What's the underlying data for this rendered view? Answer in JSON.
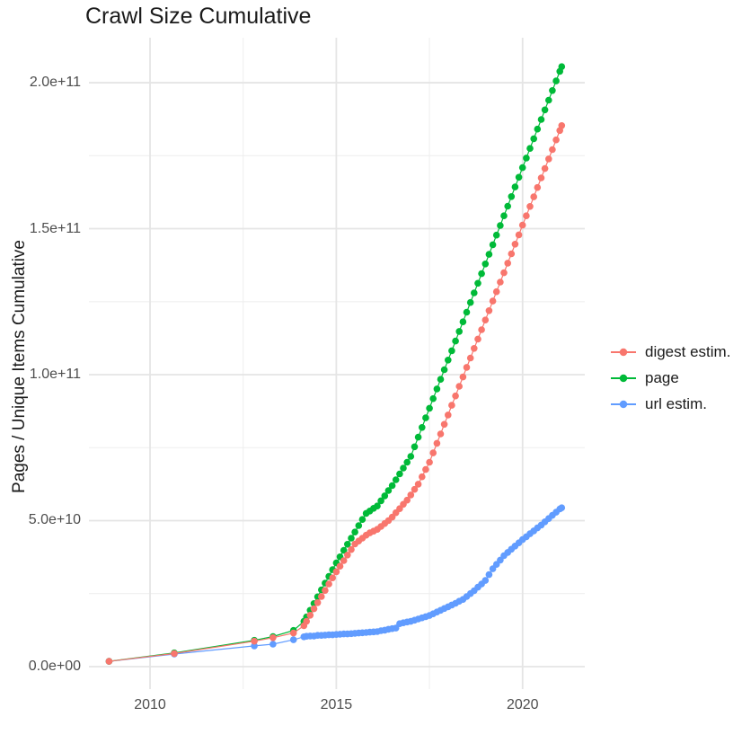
{
  "chart_data": {
    "type": "line",
    "title": "Crawl Size Cumulative",
    "xlabel": "",
    "ylabel": "Pages / Unique Items Cumulative",
    "legend_position": "right",
    "grid": true,
    "value_unit": 1000000000,
    "units_note": "point values are in billions (1e9); y axis shows scientific labels",
    "xlim": [
      2008.36,
      2021.67
    ],
    "ylim_e9": [
      -7.7,
      215.4
    ],
    "x_ticks": [
      {
        "label": "2010",
        "value": 2010
      },
      {
        "label": "2015",
        "value": 2015
      },
      {
        "label": "2020",
        "value": 2020
      }
    ],
    "y_ticks": [
      {
        "label": "0.0e+00",
        "value": 0
      },
      {
        "label": "5.0e+10",
        "value": 50
      },
      {
        "label": "1.0e+11",
        "value": 100
      },
      {
        "label": "1.5e+11",
        "value": 150
      },
      {
        "label": "2.0e+11",
        "value": 200
      }
    ],
    "x_minor": [
      2012.5,
      2017.5
    ],
    "y_minor": [
      25,
      75,
      125,
      175
    ],
    "series": [
      {
        "name": "digest estim.",
        "color": "#F8766D",
        "points": [
          [
            2008.9,
            1.8
          ],
          [
            2010.65,
            4.5
          ],
          [
            2012.8,
            8.7
          ],
          [
            2013.3,
            9.9
          ],
          [
            2013.85,
            11.5
          ],
          [
            2014.13,
            14.0
          ],
          [
            2014.2,
            15.5
          ],
          [
            2014.3,
            17.6
          ],
          [
            2014.4,
            19.8
          ],
          [
            2014.5,
            21.9
          ],
          [
            2014.6,
            24.0
          ],
          [
            2014.7,
            26.1
          ],
          [
            2014.8,
            28.3
          ],
          [
            2014.9,
            30.4
          ],
          [
            2015.0,
            32.5
          ],
          [
            2015.1,
            34.4
          ],
          [
            2015.2,
            36.3
          ],
          [
            2015.3,
            38.2
          ],
          [
            2015.4,
            40.1
          ],
          [
            2015.5,
            42.0
          ],
          [
            2015.6,
            43.0
          ],
          [
            2015.7,
            44.0
          ],
          [
            2015.8,
            45.0
          ],
          [
            2015.9,
            45.8
          ],
          [
            2016.0,
            46.4
          ],
          [
            2016.1,
            47.0
          ],
          [
            2016.2,
            48.0
          ],
          [
            2016.3,
            49.0
          ],
          [
            2016.4,
            50.0
          ],
          [
            2016.5,
            51.2
          ],
          [
            2016.6,
            52.7
          ],
          [
            2016.7,
            54.1
          ],
          [
            2016.8,
            55.6
          ],
          [
            2016.9,
            57.0
          ],
          [
            2017.0,
            58.8
          ],
          [
            2017.1,
            60.7
          ],
          [
            2017.2,
            62.5
          ],
          [
            2017.3,
            65.0
          ],
          [
            2017.4,
            67.5
          ],
          [
            2017.5,
            70.0
          ],
          [
            2017.6,
            73.2
          ],
          [
            2017.7,
            76.5
          ],
          [
            2017.8,
            79.7
          ],
          [
            2017.9,
            83.0
          ],
          [
            2018.0,
            86.2
          ],
          [
            2018.1,
            89.5
          ],
          [
            2018.2,
            92.7
          ],
          [
            2018.3,
            96.0
          ],
          [
            2018.4,
            99.2
          ],
          [
            2018.5,
            102.5
          ],
          [
            2018.6,
            105.7
          ],
          [
            2018.7,
            109.0
          ],
          [
            2018.8,
            112.2
          ],
          [
            2018.9,
            115.4
          ],
          [
            2019.0,
            118.7
          ],
          [
            2019.1,
            121.9
          ],
          [
            2019.2,
            125.2
          ],
          [
            2019.3,
            128.4
          ],
          [
            2019.4,
            131.7
          ],
          [
            2019.5,
            134.9
          ],
          [
            2019.6,
            138.2
          ],
          [
            2019.7,
            141.4
          ],
          [
            2019.8,
            144.7
          ],
          [
            2019.9,
            147.9
          ],
          [
            2020.0,
            151.2
          ],
          [
            2020.1,
            154.4
          ],
          [
            2020.2,
            157.6
          ],
          [
            2020.3,
            160.9
          ],
          [
            2020.4,
            164.1
          ],
          [
            2020.5,
            167.4
          ],
          [
            2020.6,
            170.6
          ],
          [
            2020.7,
            173.9
          ],
          [
            2020.8,
            177.1
          ],
          [
            2020.9,
            180.4
          ],
          [
            2021.0,
            183.6
          ],
          [
            2021.05,
            185.3
          ]
        ]
      },
      {
        "name": "page",
        "color": "#00BA38",
        "points": [
          [
            2008.9,
            1.8
          ],
          [
            2010.65,
            4.7
          ],
          [
            2012.8,
            9.0
          ],
          [
            2013.3,
            10.3
          ],
          [
            2013.85,
            12.4
          ],
          [
            2014.13,
            15.5
          ],
          [
            2014.2,
            17.0
          ],
          [
            2014.3,
            19.3
          ],
          [
            2014.4,
            21.6
          ],
          [
            2014.5,
            23.9
          ],
          [
            2014.6,
            26.3
          ],
          [
            2014.7,
            28.6
          ],
          [
            2014.8,
            30.9
          ],
          [
            2014.9,
            33.2
          ],
          [
            2015.0,
            35.5
          ],
          [
            2015.1,
            37.6
          ],
          [
            2015.2,
            39.8
          ],
          [
            2015.3,
            41.9
          ],
          [
            2015.4,
            44.0
          ],
          [
            2015.5,
            46.1
          ],
          [
            2015.6,
            48.3
          ],
          [
            2015.7,
            50.4
          ],
          [
            2015.8,
            52.5
          ],
          [
            2015.9,
            53.3
          ],
          [
            2016.0,
            54.2
          ],
          [
            2016.1,
            55.0
          ],
          [
            2016.2,
            56.8
          ],
          [
            2016.3,
            58.5
          ],
          [
            2016.4,
            60.3
          ],
          [
            2016.5,
            62.0
          ],
          [
            2016.6,
            64.0
          ],
          [
            2016.7,
            66.0
          ],
          [
            2016.8,
            68.0
          ],
          [
            2016.9,
            70.0
          ],
          [
            2017.0,
            72.0
          ],
          [
            2017.1,
            75.3
          ],
          [
            2017.2,
            78.6
          ],
          [
            2017.3,
            81.9
          ],
          [
            2017.4,
            85.2
          ],
          [
            2017.5,
            88.5
          ],
          [
            2017.6,
            91.8
          ],
          [
            2017.7,
            95.1
          ],
          [
            2017.8,
            98.4
          ],
          [
            2017.9,
            101.7
          ],
          [
            2018.0,
            105.0
          ],
          [
            2018.1,
            108.2
          ],
          [
            2018.2,
            111.5
          ],
          [
            2018.3,
            114.8
          ],
          [
            2018.4,
            118.1
          ],
          [
            2018.5,
            121.4
          ],
          [
            2018.6,
            124.7
          ],
          [
            2018.7,
            128.0
          ],
          [
            2018.8,
            131.3
          ],
          [
            2018.9,
            134.6
          ],
          [
            2019.0,
            137.9
          ],
          [
            2019.1,
            141.2
          ],
          [
            2019.2,
            144.5
          ],
          [
            2019.3,
            147.8
          ],
          [
            2019.4,
            151.1
          ],
          [
            2019.5,
            154.4
          ],
          [
            2019.6,
            157.7
          ],
          [
            2019.7,
            161.0
          ],
          [
            2019.8,
            164.3
          ],
          [
            2019.9,
            167.6
          ],
          [
            2020.0,
            170.9
          ],
          [
            2020.1,
            174.2
          ],
          [
            2020.2,
            177.5
          ],
          [
            2020.3,
            180.8
          ],
          [
            2020.4,
            184.1
          ],
          [
            2020.5,
            187.4
          ],
          [
            2020.6,
            190.7
          ],
          [
            2020.7,
            194.0
          ],
          [
            2020.8,
            197.3
          ],
          [
            2020.9,
            200.6
          ],
          [
            2021.0,
            203.9
          ],
          [
            2021.05,
            205.5
          ]
        ]
      },
      {
        "name": "url estim.",
        "color": "#619CFF",
        "points": [
          [
            2008.9,
            1.8
          ],
          [
            2010.65,
            4.3
          ],
          [
            2012.8,
            7.1
          ],
          [
            2013.3,
            7.7
          ],
          [
            2013.85,
            9.2
          ],
          [
            2014.13,
            10.2
          ],
          [
            2014.2,
            10.4
          ],
          [
            2014.3,
            10.5
          ],
          [
            2014.4,
            10.5
          ],
          [
            2014.5,
            10.7
          ],
          [
            2014.6,
            10.7
          ],
          [
            2014.7,
            10.8
          ],
          [
            2014.8,
            10.9
          ],
          [
            2014.9,
            10.9
          ],
          [
            2015.0,
            11.0
          ],
          [
            2015.1,
            11.1
          ],
          [
            2015.2,
            11.2
          ],
          [
            2015.3,
            11.2
          ],
          [
            2015.4,
            11.3
          ],
          [
            2015.5,
            11.4
          ],
          [
            2015.6,
            11.5
          ],
          [
            2015.7,
            11.6
          ],
          [
            2015.8,
            11.7
          ],
          [
            2015.9,
            11.8
          ],
          [
            2016.0,
            11.9
          ],
          [
            2016.1,
            12.0
          ],
          [
            2016.2,
            12.3
          ],
          [
            2016.3,
            12.5
          ],
          [
            2016.4,
            12.8
          ],
          [
            2016.5,
            13.0
          ],
          [
            2016.6,
            13.2
          ],
          [
            2016.7,
            14.7
          ],
          [
            2016.8,
            15.0
          ],
          [
            2016.9,
            15.3
          ],
          [
            2017.0,
            15.5
          ],
          [
            2017.1,
            15.9
          ],
          [
            2017.2,
            16.3
          ],
          [
            2017.3,
            16.7
          ],
          [
            2017.4,
            17.1
          ],
          [
            2017.5,
            17.5
          ],
          [
            2017.6,
            18.1
          ],
          [
            2017.7,
            18.7
          ],
          [
            2017.8,
            19.3
          ],
          [
            2017.9,
            19.9
          ],
          [
            2018.0,
            20.5
          ],
          [
            2018.1,
            21.1
          ],
          [
            2018.2,
            21.7
          ],
          [
            2018.3,
            22.4
          ],
          [
            2018.4,
            23.0
          ],
          [
            2018.5,
            24.0
          ],
          [
            2018.6,
            25.0
          ],
          [
            2018.7,
            26.0
          ],
          [
            2018.8,
            27.2
          ],
          [
            2018.9,
            28.3
          ],
          [
            2019.0,
            29.5
          ],
          [
            2019.1,
            31.5
          ],
          [
            2019.2,
            33.5
          ],
          [
            2019.3,
            35.0
          ],
          [
            2019.4,
            36.5
          ],
          [
            2019.5,
            38.0
          ],
          [
            2019.6,
            39.1
          ],
          [
            2019.7,
            40.2
          ],
          [
            2019.8,
            41.3
          ],
          [
            2019.9,
            42.4
          ],
          [
            2020.0,
            43.5
          ],
          [
            2020.1,
            44.5
          ],
          [
            2020.2,
            45.5
          ],
          [
            2020.3,
            46.5
          ],
          [
            2020.4,
            47.5
          ],
          [
            2020.5,
            48.5
          ],
          [
            2020.6,
            49.6
          ],
          [
            2020.7,
            50.7
          ],
          [
            2020.8,
            51.8
          ],
          [
            2020.9,
            52.9
          ],
          [
            2021.0,
            54.0
          ],
          [
            2021.05,
            54.4
          ]
        ]
      }
    ]
  },
  "style": {
    "major_grid_color": "#e5e5e5",
    "minor_grid_color": "#efefef",
    "background": "#ffffff",
    "tick_label_color": "#4d4d4d",
    "text_color": "#1a1a1a"
  }
}
